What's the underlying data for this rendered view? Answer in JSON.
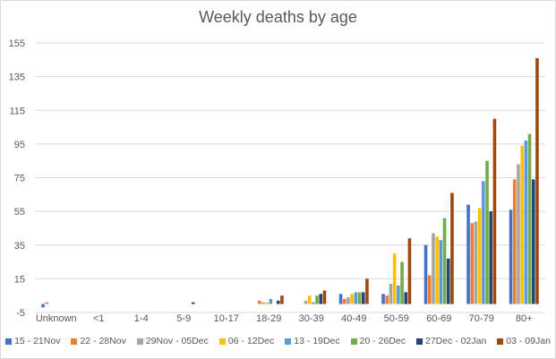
{
  "chart_data": {
    "type": "bar",
    "title": "Weekly deaths by age",
    "categories": [
      "Unknown",
      "<1",
      "1-4",
      "5-9",
      "10-17",
      "18-29",
      "30-39",
      "40-49",
      "50-59",
      "60-69",
      "70-79",
      "80+"
    ],
    "yticks": [
      -5,
      15,
      35,
      55,
      75,
      95,
      115,
      135,
      155
    ],
    "ylim": [
      -5,
      155
    ],
    "grid": true,
    "legend_position": "bottom",
    "series": [
      {
        "name": "15 - 21Nov",
        "color": "#4472C4",
        "values": [
          -2,
          0,
          0,
          0,
          0,
          0,
          0,
          6,
          6,
          35,
          59,
          56
        ]
      },
      {
        "name": "22 - 28Nov",
        "color": "#ED7D31",
        "values": [
          1,
          0,
          0,
          0,
          0,
          2,
          0,
          3,
          5,
          17,
          48,
          74
        ]
      },
      {
        "name": "29Nov - 05Dec",
        "color": "#A5A5A5",
        "values": [
          0,
          0,
          0,
          0,
          0,
          1,
          2,
          4,
          12,
          42,
          49,
          83
        ]
      },
      {
        "name": "06 - 12Dec",
        "color": "#FFC000",
        "values": [
          0,
          0,
          0,
          0,
          0,
          1,
          5,
          6,
          30,
          40,
          57,
          94
        ]
      },
      {
        "name": "13 - 19Dec",
        "color": "#5B9BD5",
        "values": [
          0,
          0,
          0,
          0,
          0,
          3,
          1,
          7,
          11,
          38,
          73,
          97
        ]
      },
      {
        "name": "20 - 26Dec",
        "color": "#70AD47",
        "values": [
          0,
          0,
          0,
          0,
          0,
          0,
          5,
          7,
          25,
          51,
          85,
          101
        ]
      },
      {
        "name": "27Dec - 02Jan",
        "color": "#264478",
        "values": [
          0,
          0,
          0,
          1,
          0,
          2,
          6,
          7,
          7,
          27,
          55,
          74
        ]
      },
      {
        "name": "03 - 09Jan",
        "color": "#9E480E",
        "values": [
          0,
          0,
          0,
          0,
          0,
          5,
          8,
          15,
          39,
          66,
          110,
          146
        ]
      }
    ]
  }
}
